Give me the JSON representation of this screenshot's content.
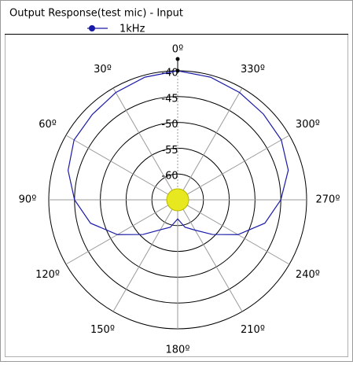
{
  "chart_data": {
    "type": "polar",
    "title": "Output Response(test mic) - Input",
    "theta": [
      0,
      15,
      30,
      45,
      60,
      75,
      90,
      105,
      120,
      135,
      150,
      165,
      180,
      195,
      210,
      225,
      240,
      255,
      270,
      285,
      300,
      315,
      330,
      345
    ],
    "series": [
      {
        "name": "1kHz",
        "color": "#1a1aa8",
        "values": [
          -40,
          -40.4,
          -41,
          -41.6,
          -41.8,
          -43,
          -45,
          -47.5,
          -51.5,
          -55.5,
          -58.3,
          -59.5,
          -61.3,
          -59.5,
          -58.2,
          -55.5,
          -51.5,
          -47.5,
          -45,
          -42.8,
          -41.8,
          -41.5,
          -41,
          -40.4
        ]
      }
    ],
    "rlim": [
      -65,
      -40
    ],
    "rticks": [
      -40,
      -45,
      -50,
      -55,
      -60
    ],
    "angle_ticks": [
      {
        "value": 0,
        "label": "0º"
      },
      {
        "value": 30,
        "label": "30º"
      },
      {
        "value": 60,
        "label": "60º"
      },
      {
        "value": 90,
        "label": "90º"
      },
      {
        "value": 120,
        "label": "120º"
      },
      {
        "value": 150,
        "label": "150º"
      },
      {
        "value": 180,
        "label": "180º"
      },
      {
        "value": 210,
        "label": "210º"
      },
      {
        "value": 240,
        "label": "240º"
      },
      {
        "value": 270,
        "label": "270º"
      },
      {
        "value": 300,
        "label": "300º"
      },
      {
        "value": 330,
        "label": "330º"
      }
    ],
    "direction": "counterclockwise",
    "zero_location": "top"
  }
}
